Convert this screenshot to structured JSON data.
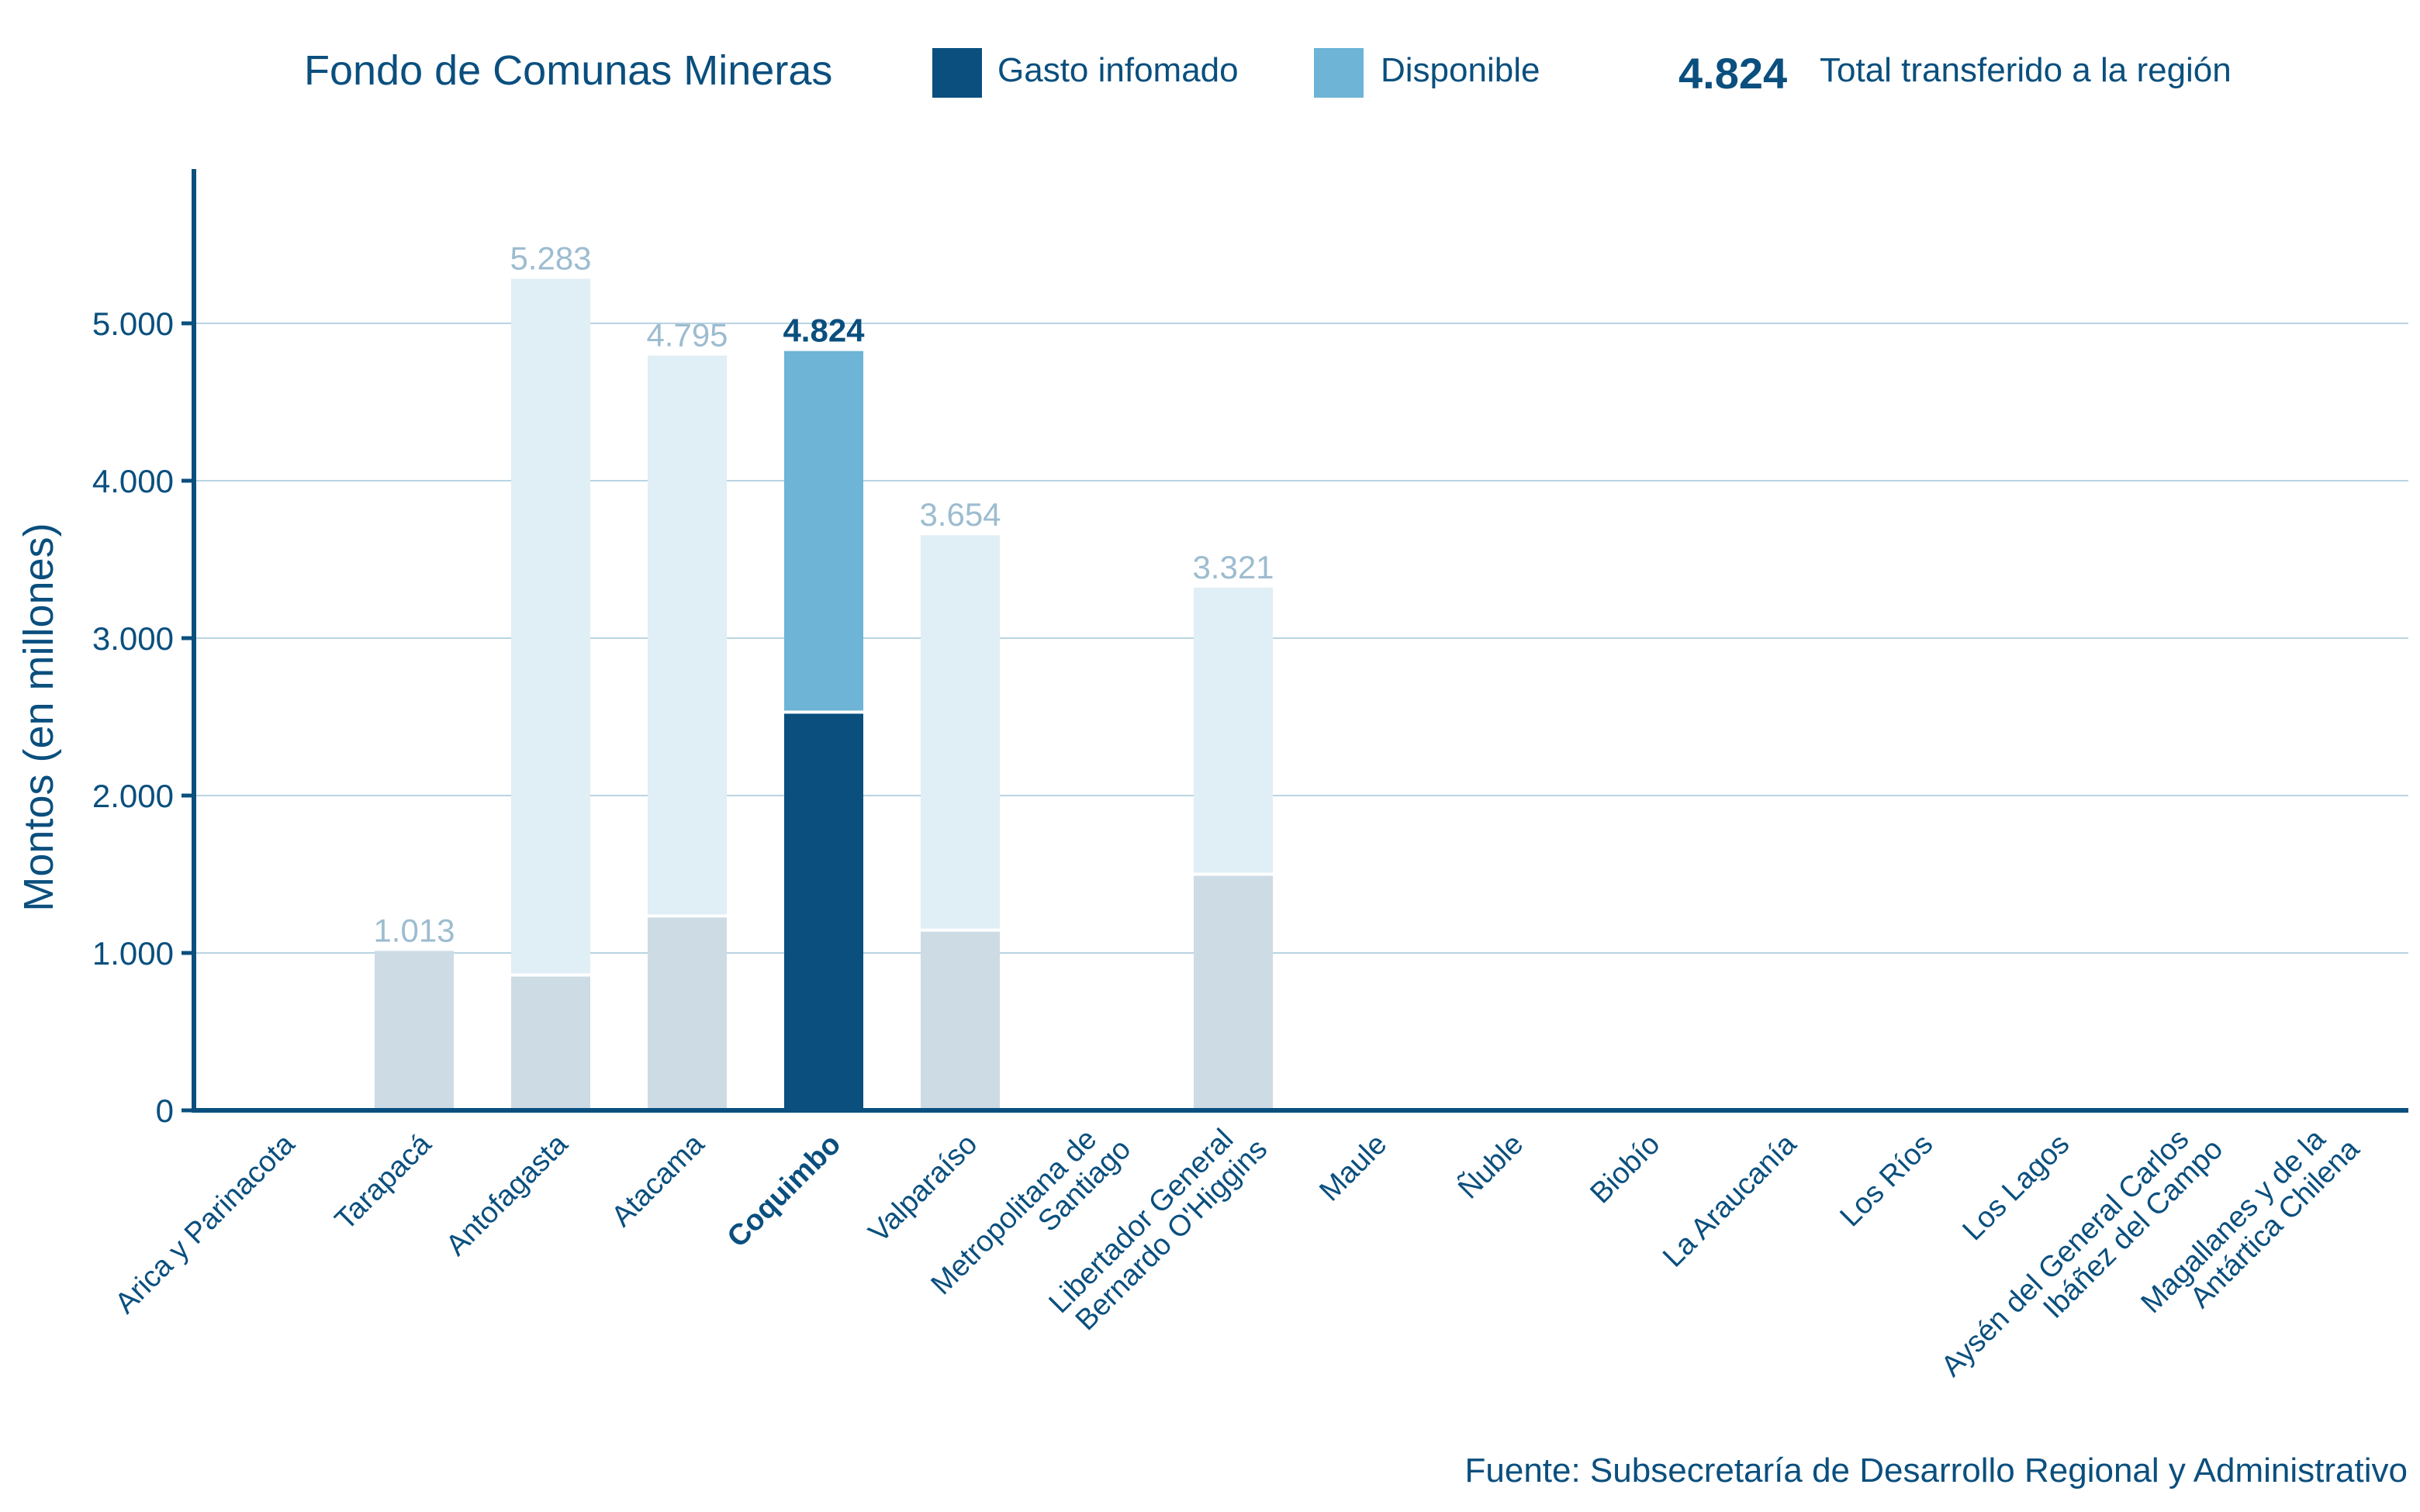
{
  "legend": {
    "title": "Fondo de Comunas Mineras",
    "items": [
      {
        "label": "Gasto infomado",
        "color": "#0a4f7e"
      },
      {
        "label": "Disponible",
        "color": "#6db4d6"
      }
    ],
    "total_value": "4.824",
    "total_label": "Total transferido a la región"
  },
  "source": "Fuente: Subsecretaría de Desarrollo Regional y Administrativo",
  "colors": {
    "axis": "#0a4f7e",
    "grid": "#b9d4e3",
    "highlight_spent": "#0a4f7e",
    "highlight_available": "#6db4d6",
    "muted_spent": "#cddbe5",
    "muted_available": "#e0eef5",
    "muted_label": "#9dbcd0"
  },
  "chart_data": {
    "type": "bar",
    "stacked": true,
    "title": "Fondo de Comunas Mineras",
    "xlabel": "",
    "ylabel": "Montos (en millones)",
    "ylim": [
      0,
      5800
    ],
    "yticks": [
      0,
      1000,
      2000,
      3000,
      4000,
      5000
    ],
    "ytick_labels": [
      "0",
      "1.000",
      "2.000",
      "3.000",
      "4.000",
      "5.000"
    ],
    "grid": true,
    "legend_position": "top",
    "highlighted_category": "Coquimbo",
    "categories": [
      "Arica y Parinacota",
      "Tarapacá",
      "Antofagasta",
      "Atacama",
      "Coquimbo",
      "Valparaíso",
      "Metropolitana de Santiago",
      "Libertador General Bernardo O'Higgins",
      "Maule",
      "Ñuble",
      "Biobío",
      "La Araucanía",
      "Los Ríos",
      "Los Lagos",
      "Aysén del General Carlos Ibáñez del Campo",
      "Magallanes y de la Antártica Chilena"
    ],
    "category_label_lines": [
      [
        "Arica y Parinacota"
      ],
      [
        "Tarapacá"
      ],
      [
        "Antofagasta"
      ],
      [
        "Atacama"
      ],
      [
        "Coquimbo"
      ],
      [
        "Valparaíso"
      ],
      [
        "Metropolitana de",
        "Santiago"
      ],
      [
        "Libertador General",
        "Bernardo O'Higgins"
      ],
      [
        "Maule"
      ],
      [
        "Ñuble"
      ],
      [
        "Biobío"
      ],
      [
        "La Araucanía"
      ],
      [
        "Los Ríos"
      ],
      [
        "Los Lagos"
      ],
      [
        "Aysén del General Carlos",
        "Ibáñez del Campo"
      ],
      [
        "Magallanes y de la",
        "Antártica Chilena"
      ]
    ],
    "series": [
      {
        "name": "Gasto infomado",
        "values": [
          0,
          1013,
          850,
          1225,
          2520,
          1135,
          0,
          1490,
          0,
          0,
          0,
          0,
          0,
          0,
          0,
          0
        ]
      },
      {
        "name": "Disponible",
        "values": [
          0,
          0,
          4433,
          3570,
          2304,
          2519,
          0,
          1831,
          0,
          0,
          0,
          0,
          0,
          0,
          0,
          0
        ]
      }
    ],
    "totals": [
      0,
      1013,
      5283,
      4795,
      4824,
      3654,
      0,
      3321,
      0,
      0,
      0,
      0,
      0,
      0,
      0,
      0
    ],
    "total_labels": [
      "",
      "1.013",
      "5.283",
      "4.795",
      "4.824",
      "3.654",
      "",
      "3.321",
      "",
      "",
      "",
      "",
      "",
      "",
      "",
      ""
    ]
  }
}
